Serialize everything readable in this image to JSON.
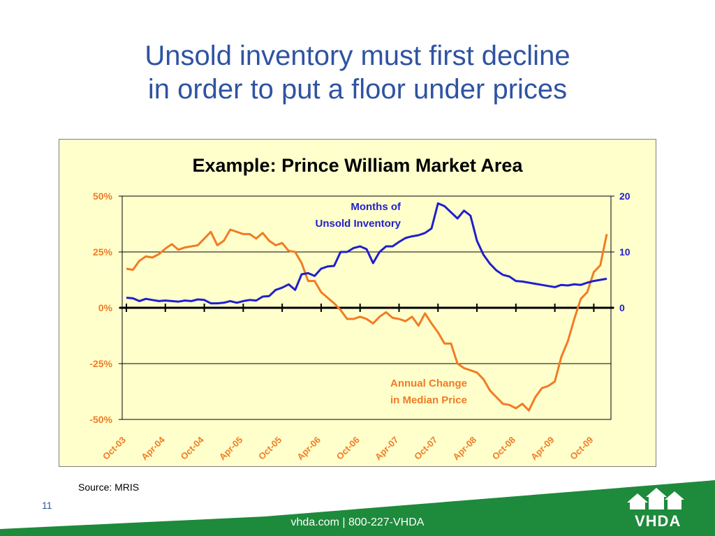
{
  "slide": {
    "title_line1": "Unsold inventory must first decline",
    "title_line2": "in order to put a floor under prices",
    "source": "Source:  MRIS",
    "page_number": "11",
    "footer": "vhda.com | 800-227-VHDA",
    "logo": "VHDA",
    "colors": {
      "title": "#2f53a2",
      "green": "#1e8a3c",
      "panel": "#ffffcc"
    }
  },
  "chart_data": {
    "type": "line",
    "title": "Example:  Prince William Market Area",
    "x_tick_labels": [
      "Oct-03",
      "Apr-04",
      "Oct-04",
      "Apr-05",
      "Oct-05",
      "Apr-06",
      "Oct-06",
      "Apr-07",
      "Oct-07",
      "Apr-08",
      "Oct-08",
      "Apr-09",
      "Oct-09"
    ],
    "x_range": [
      "Oct-03",
      "Feb-10"
    ],
    "y_left": {
      "ticks": [
        "50%",
        "25%",
        "0%",
        "-25%",
        "-50%"
      ],
      "range": [
        -50,
        50
      ]
    },
    "y_right": {
      "ticks": [
        "20",
        "10",
        "0"
      ],
      "range": [
        -20,
        20
      ]
    },
    "grid": "horizontal",
    "series": [
      {
        "name": "Annual Change in Median Price",
        "label": [
          "Annual Change",
          "in Median Price"
        ],
        "axis": "left",
        "color": "#f07c24",
        "values": [
          17.5,
          17,
          21,
          23,
          22.5,
          24,
          26.5,
          28.5,
          26,
          27,
          27.5,
          28,
          31,
          34,
          28,
          30,
          35,
          34,
          33,
          33,
          31,
          33.5,
          30,
          28,
          29,
          25.5,
          25,
          20,
          12,
          12,
          7,
          4.5,
          2,
          -1,
          -5,
          -5,
          -4,
          -5,
          -7,
          -4,
          -2,
          -4.5,
          -5,
          -6,
          -4,
          -8,
          -2.5,
          -7,
          -11,
          -16,
          -16,
          -25,
          -27,
          -28,
          -29,
          -32,
          -37,
          -40,
          -43,
          -43.5,
          -45,
          -43,
          -46,
          -40,
          -36,
          -35,
          -33,
          -22,
          -15,
          -5,
          4,
          7,
          16,
          19,
          33
        ]
      },
      {
        "name": "Months of Unsold Inventory",
        "label": [
          "Months of",
          "Unsold Inventory"
        ],
        "axis": "right",
        "color": "#1f1fcc",
        "values": [
          1.8,
          1.7,
          1.2,
          1.6,
          1.4,
          1.2,
          1.3,
          1.2,
          1.1,
          1.3,
          1.2,
          1.5,
          1.4,
          0.8,
          0.8,
          0.9,
          1.2,
          0.9,
          1.2,
          1.4,
          1.3,
          2.0,
          2.1,
          3.2,
          3.6,
          4.2,
          3.2,
          6.0,
          6.2,
          5.7,
          7.0,
          7.4,
          7.5,
          10.0,
          10.0,
          10.7,
          11.0,
          10.5,
          8.0,
          10.0,
          11.0,
          11.0,
          11.8,
          12.5,
          12.8,
          13.0,
          13.4,
          14.2,
          18.7,
          18.2,
          17.1,
          16.0,
          17.4,
          16.5,
          12.0,
          9.5,
          7.9,
          6.7,
          5.9,
          5.6,
          4.8,
          4.7,
          4.5,
          4.3,
          4.1,
          3.9,
          3.7,
          4.1,
          4.0,
          4.2,
          4.1,
          4.5,
          4.8,
          5.0,
          5.2
        ]
      }
    ]
  }
}
